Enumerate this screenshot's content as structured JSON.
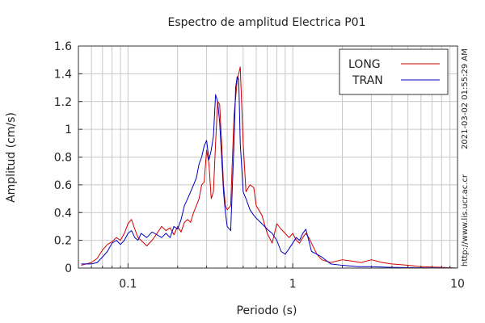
{
  "chart_data": {
    "type": "line",
    "title": "Espectro de amplitud Electrica P01",
    "xlabel": "Periodo (s)",
    "ylabel": "Amplitud (cm/s)",
    "x_scale": "log",
    "xlim": [
      0.05,
      10
    ],
    "ylim": [
      0,
      1.6
    ],
    "x_ticks": [
      {
        "value": 0.1,
        "label": "0.1"
      },
      {
        "value": 1,
        "label": "1"
      },
      {
        "value": 10,
        "label": "10"
      }
    ],
    "y_ticks": [
      {
        "value": 0,
        "label": "0"
      },
      {
        "value": 0.2,
        "label": "0.2"
      },
      {
        "value": 0.4,
        "label": "0.4"
      },
      {
        "value": 0.6,
        "label": "0.6"
      },
      {
        "value": 0.8,
        "label": "0.8"
      },
      {
        "value": 1,
        "label": "1"
      },
      {
        "value": 1.2,
        "label": "1.2"
      },
      {
        "value": 1.4,
        "label": "1.4"
      },
      {
        "value": 1.6,
        "label": "1.6"
      }
    ],
    "grid": true,
    "legend_position": "top-right",
    "side_text": "http://www.lis.ucr.ac.cr",
    "timestamp": "2021-03-02 01:55:29 AM",
    "series": [
      {
        "name": "LONG",
        "color": "#d00000",
        "points": [
          [
            0.052,
            0.02
          ],
          [
            0.06,
            0.04
          ],
          [
            0.065,
            0.07
          ],
          [
            0.07,
            0.13
          ],
          [
            0.075,
            0.17
          ],
          [
            0.08,
            0.19
          ],
          [
            0.085,
            0.22
          ],
          [
            0.09,
            0.2
          ],
          [
            0.095,
            0.25
          ],
          [
            0.1,
            0.32
          ],
          [
            0.105,
            0.35
          ],
          [
            0.11,
            0.28
          ],
          [
            0.115,
            0.22
          ],
          [
            0.12,
            0.2
          ],
          [
            0.13,
            0.16
          ],
          [
            0.14,
            0.2
          ],
          [
            0.15,
            0.25
          ],
          [
            0.16,
            0.3
          ],
          [
            0.17,
            0.27
          ],
          [
            0.18,
            0.29
          ],
          [
            0.19,
            0.24
          ],
          [
            0.2,
            0.3
          ],
          [
            0.21,
            0.26
          ],
          [
            0.22,
            0.33
          ],
          [
            0.23,
            0.35
          ],
          [
            0.24,
            0.33
          ],
          [
            0.25,
            0.4
          ],
          [
            0.26,
            0.45
          ],
          [
            0.27,
            0.5
          ],
          [
            0.28,
            0.6
          ],
          [
            0.29,
            0.62
          ],
          [
            0.3,
            0.85
          ],
          [
            0.31,
            0.75
          ],
          [
            0.32,
            0.5
          ],
          [
            0.33,
            0.55
          ],
          [
            0.34,
            0.9
          ],
          [
            0.35,
            1.2
          ],
          [
            0.36,
            1.18
          ],
          [
            0.37,
            0.9
          ],
          [
            0.38,
            0.6
          ],
          [
            0.39,
            0.45
          ],
          [
            0.4,
            0.42
          ],
          [
            0.42,
            0.45
          ],
          [
            0.44,
            1.1
          ],
          [
            0.46,
            1.35
          ],
          [
            0.48,
            1.45
          ],
          [
            0.5,
            0.9
          ],
          [
            0.52,
            0.55
          ],
          [
            0.55,
            0.6
          ],
          [
            0.58,
            0.58
          ],
          [
            0.6,
            0.45
          ],
          [
            0.65,
            0.38
          ],
          [
            0.7,
            0.25
          ],
          [
            0.75,
            0.18
          ],
          [
            0.8,
            0.32
          ],
          [
            0.85,
            0.28
          ],
          [
            0.9,
            0.25
          ],
          [
            0.95,
            0.22
          ],
          [
            1.0,
            0.25
          ],
          [
            1.05,
            0.2
          ],
          [
            1.1,
            0.18
          ],
          [
            1.15,
            0.22
          ],
          [
            1.2,
            0.25
          ],
          [
            1.25,
            0.22
          ],
          [
            1.3,
            0.18
          ],
          [
            1.4,
            0.1
          ],
          [
            1.5,
            0.06
          ],
          [
            1.7,
            0.04
          ],
          [
            2.0,
            0.06
          ],
          [
            2.3,
            0.05
          ],
          [
            2.6,
            0.04
          ],
          [
            3.0,
            0.06
          ],
          [
            3.5,
            0.04
          ],
          [
            4.0,
            0.03
          ],
          [
            5.0,
            0.02
          ],
          [
            6.0,
            0.01
          ],
          [
            8.0,
            0.005
          ],
          [
            10.0,
            0.0
          ]
        ]
      },
      {
        "name": "TRAN",
        "color": "#0000c0",
        "points": [
          [
            0.052,
            0.03
          ],
          [
            0.06,
            0.03
          ],
          [
            0.065,
            0.04
          ],
          [
            0.07,
            0.08
          ],
          [
            0.075,
            0.12
          ],
          [
            0.08,
            0.18
          ],
          [
            0.085,
            0.2
          ],
          [
            0.09,
            0.17
          ],
          [
            0.095,
            0.2
          ],
          [
            0.1,
            0.25
          ],
          [
            0.105,
            0.27
          ],
          [
            0.11,
            0.22
          ],
          [
            0.115,
            0.2
          ],
          [
            0.12,
            0.25
          ],
          [
            0.13,
            0.22
          ],
          [
            0.14,
            0.26
          ],
          [
            0.15,
            0.24
          ],
          [
            0.16,
            0.22
          ],
          [
            0.17,
            0.25
          ],
          [
            0.18,
            0.22
          ],
          [
            0.19,
            0.3
          ],
          [
            0.2,
            0.28
          ],
          [
            0.21,
            0.35
          ],
          [
            0.22,
            0.45
          ],
          [
            0.23,
            0.5
          ],
          [
            0.24,
            0.55
          ],
          [
            0.25,
            0.6
          ],
          [
            0.26,
            0.65
          ],
          [
            0.27,
            0.75
          ],
          [
            0.28,
            0.8
          ],
          [
            0.29,
            0.88
          ],
          [
            0.3,
            0.92
          ],
          [
            0.31,
            0.78
          ],
          [
            0.32,
            0.85
          ],
          [
            0.33,
            0.95
          ],
          [
            0.34,
            1.25
          ],
          [
            0.35,
            1.2
          ],
          [
            0.36,
            1.05
          ],
          [
            0.37,
            0.8
          ],
          [
            0.38,
            0.55
          ],
          [
            0.39,
            0.4
          ],
          [
            0.4,
            0.3
          ],
          [
            0.42,
            0.27
          ],
          [
            0.44,
            0.9
          ],
          [
            0.45,
            1.3
          ],
          [
            0.46,
            1.38
          ],
          [
            0.47,
            1.36
          ],
          [
            0.48,
            0.9
          ],
          [
            0.5,
            0.55
          ],
          [
            0.52,
            0.5
          ],
          [
            0.55,
            0.42
          ],
          [
            0.58,
            0.38
          ],
          [
            0.6,
            0.36
          ],
          [
            0.65,
            0.32
          ],
          [
            0.7,
            0.28
          ],
          [
            0.75,
            0.25
          ],
          [
            0.8,
            0.2
          ],
          [
            0.85,
            0.12
          ],
          [
            0.9,
            0.1
          ],
          [
            0.95,
            0.14
          ],
          [
            1.0,
            0.18
          ],
          [
            1.05,
            0.22
          ],
          [
            1.1,
            0.2
          ],
          [
            1.15,
            0.25
          ],
          [
            1.2,
            0.28
          ],
          [
            1.25,
            0.2
          ],
          [
            1.3,
            0.12
          ],
          [
            1.4,
            0.1
          ],
          [
            1.5,
            0.08
          ],
          [
            1.7,
            0.03
          ],
          [
            2.0,
            0.02
          ],
          [
            2.5,
            0.01
          ],
          [
            3.0,
            0.01
          ],
          [
            4.0,
            0.005
          ],
          [
            6.0,
            0.002
          ],
          [
            10.0,
            0.0
          ]
        ]
      }
    ]
  }
}
